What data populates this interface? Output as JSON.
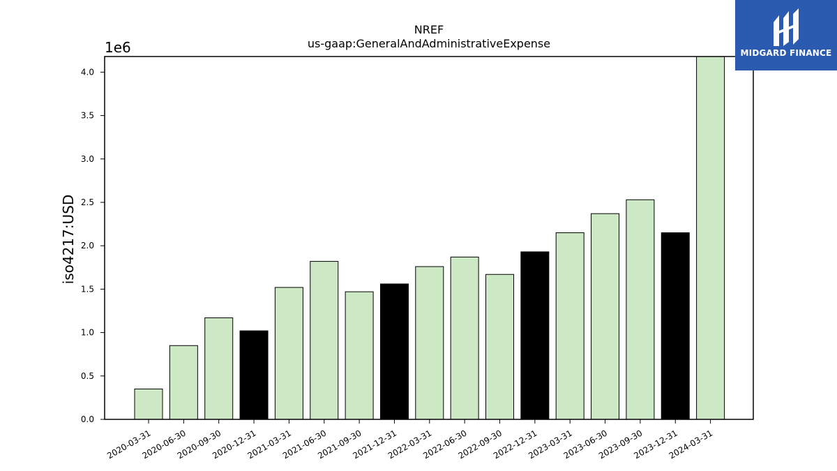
{
  "chart_data": {
    "type": "bar",
    "title": "NREF",
    "subtitle": "us-gaap:GeneralAndAdministrativeExpense",
    "xlabel": "",
    "ylabel": "iso4217:USD",
    "y_offset_label": "1e6",
    "ylim": [
      0,
      4.18
    ],
    "yticks": [
      "0.0",
      "0.5",
      "1.0",
      "1.5",
      "2.0",
      "2.5",
      "3.0",
      "3.5",
      "4.0"
    ],
    "categories": [
      "2020-03-31",
      "2020-06-30",
      "2020-09-30",
      "2020-12-31",
      "2021-03-31",
      "2021-06-30",
      "2021-09-30",
      "2021-12-31",
      "2022-03-31",
      "2022-06-30",
      "2022-09-30",
      "2022-12-31",
      "2023-03-31",
      "2023-06-30",
      "2023-09-30",
      "2023-12-31",
      "2024-03-31"
    ],
    "values": [
      0.35,
      0.85,
      1.17,
      1.02,
      1.52,
      1.82,
      1.47,
      1.56,
      1.76,
      1.87,
      1.67,
      1.93,
      2.15,
      2.37,
      2.53,
      2.15,
      4.18
    ],
    "bar_colors": [
      "#cde8c5",
      "#cde8c5",
      "#cde8c5",
      "#000000",
      "#cde8c5",
      "#cde8c5",
      "#cde8c5",
      "#000000",
      "#cde8c5",
      "#cde8c5",
      "#cde8c5",
      "#000000",
      "#cde8c5",
      "#cde8c5",
      "#cde8c5",
      "#000000",
      "#cde8c5"
    ],
    "grid": false
  },
  "logo": {
    "text": "MIDGARD FINANCE",
    "background": "#2b5bb0"
  }
}
